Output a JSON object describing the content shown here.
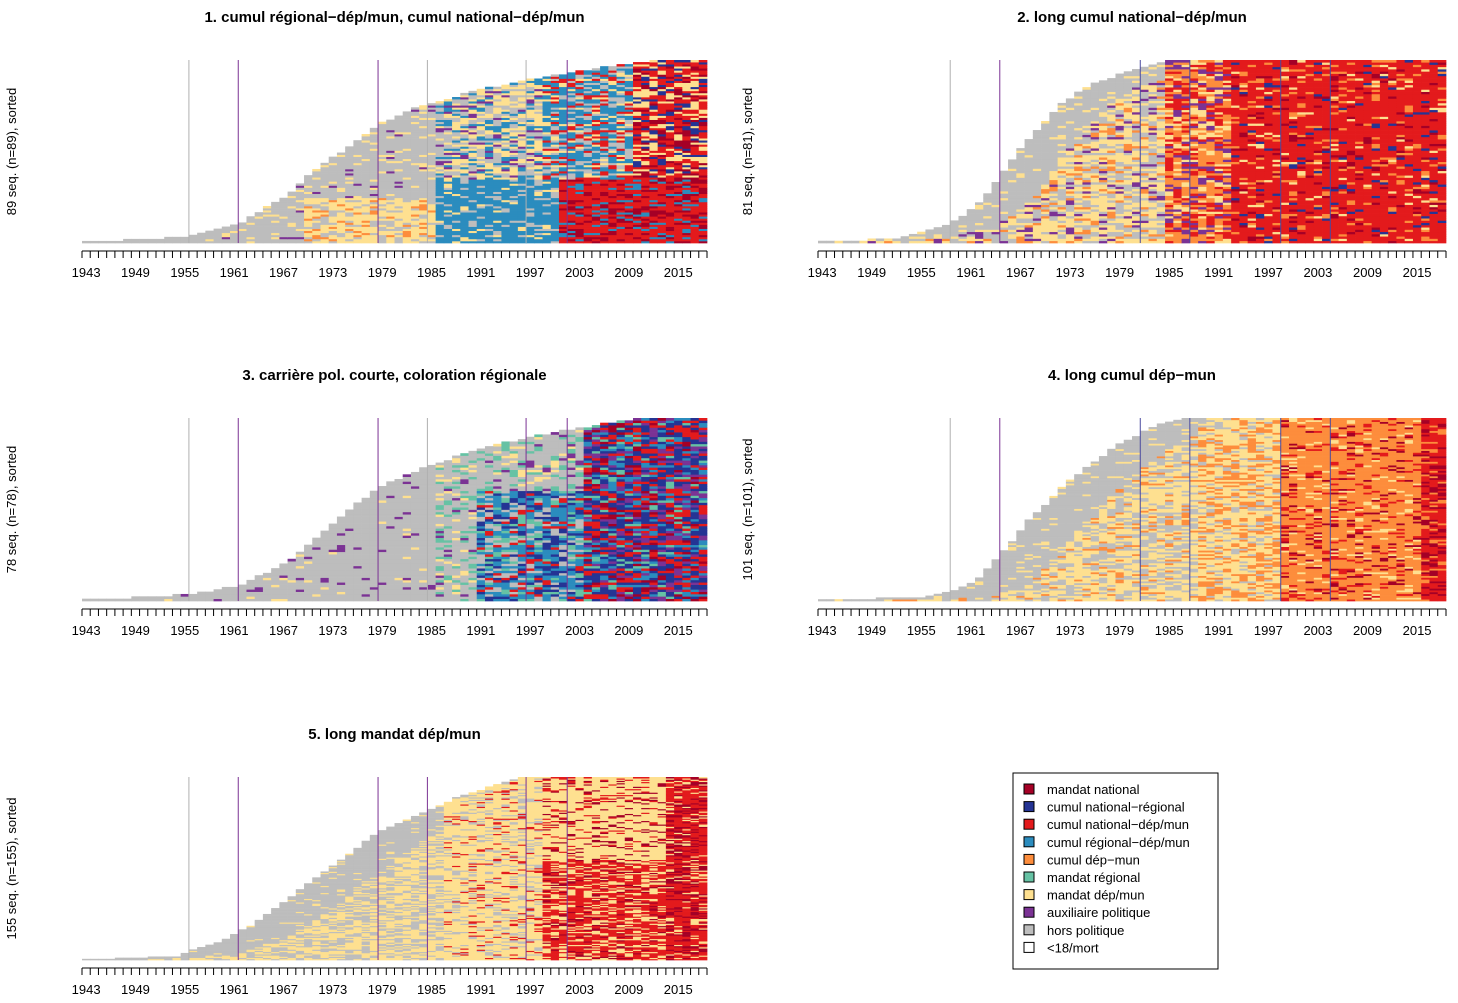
{
  "chart_data": [
    {
      "id": "cluster-1",
      "type": "heatmap",
      "title": "1. cumul régional−dép/mun, cumul national−dép/mun",
      "ylabel": "89 seq. (n=89), sorted",
      "n": 89,
      "xlim": [
        1943,
        2019
      ],
      "xticks": [
        1943,
        1949,
        1955,
        1961,
        1967,
        1973,
        1979,
        1985,
        1991,
        1997,
        2003,
        2009,
        2015
      ],
      "vlines": [
        {
          "year": 1956,
          "color": "#b0b0b0"
        },
        {
          "year": 1962,
          "color": "#7b3294"
        },
        {
          "year": 1979,
          "color": "#7b3294"
        },
        {
          "year": 1985,
          "color": "#b0b0b0"
        },
        {
          "year": 1997,
          "color": "#b0b0b0"
        },
        {
          "year": 2002,
          "color": "#7b3294"
        }
      ],
      "entry_profile": [
        [
          0,
          1943
        ],
        [
          0.03,
          1956
        ],
        [
          0.05,
          1957
        ],
        [
          0.1,
          1962
        ],
        [
          0.18,
          1965
        ],
        [
          0.26,
          1968
        ],
        [
          0.35,
          1970
        ],
        [
          0.45,
          1973
        ],
        [
          0.55,
          1976
        ],
        [
          0.65,
          1979
        ],
        [
          0.75,
          1984
        ],
        [
          0.85,
          1992
        ],
        [
          0.92,
          2000
        ],
        [
          0.97,
          2007
        ],
        [
          1.0,
          2012
        ]
      ],
      "bands": [
        [
          0.0,
          "#fee090",
          0.45,
          "#2b8cbe",
          0.6,
          "#e31a1c",
          0.85,
          "#a50026"
        ],
        [
          0.25,
          "#fee090",
          0.5,
          "#fee090",
          0.6,
          "#2b8cbe",
          0.78,
          "#e31a1c"
        ],
        [
          0.5,
          "#fee090",
          0.6,
          "#fee090",
          0.75,
          "#2b8cbe",
          0.85,
          "#e31a1c"
        ],
        [
          0.75,
          "#fee090",
          0.8,
          "#fee090",
          0.9,
          "#fee090",
          0.95,
          "#e31a1c"
        ],
        [
          1.0,
          "#fee090",
          0.95,
          "#fee090",
          1.0,
          "#fee090",
          1.0,
          "#e31a1c"
        ]
      ]
    },
    {
      "id": "cluster-2",
      "type": "heatmap",
      "title": "2. long cumul national−dép/mun",
      "ylabel": "81 seq. (n=81), sorted",
      "n": 81,
      "xlim": [
        1943,
        2019
      ],
      "xticks": [
        1943,
        1949,
        1955,
        1961,
        1967,
        1973,
        1979,
        1985,
        1991,
        1997,
        2003,
        2009,
        2015
      ],
      "vlines": [
        {
          "year": 1959,
          "color": "#b0b0b0"
        },
        {
          "year": 1965,
          "color": "#7b3294"
        },
        {
          "year": 1982,
          "color": "#4a4aa0"
        },
        {
          "year": 1988,
          "color": "#4a4aa0"
        },
        {
          "year": 1999,
          "color": "#4a4aa0"
        },
        {
          "year": 2005,
          "color": "#4a4aa0"
        }
      ],
      "entry_profile": [
        [
          0,
          1943
        ],
        [
          0.02,
          1952
        ],
        [
          0.05,
          1955
        ],
        [
          0.1,
          1959
        ],
        [
          0.2,
          1962
        ],
        [
          0.3,
          1964
        ],
        [
          0.42,
          1966
        ],
        [
          0.55,
          1968
        ],
        [
          0.65,
          1970
        ],
        [
          0.75,
          1972
        ],
        [
          0.85,
          1975
        ],
        [
          0.92,
          1979
        ],
        [
          0.97,
          1982
        ],
        [
          1.0,
          1985
        ]
      ],
      "bands": [
        [
          0.0,
          "#fee090",
          0.2,
          "#fd8d3c",
          0.45,
          "#e31a1c",
          1.0,
          "#e31a1c"
        ],
        [
          0.25,
          "#fee090",
          0.25,
          "#fd8d3c",
          0.45,
          "#e31a1c",
          1.0,
          "#e31a1c"
        ],
        [
          0.5,
          "#fee090",
          0.3,
          "#fd8d3c",
          0.5,
          "#e31a1c",
          1.0,
          "#e31a1c"
        ],
        [
          0.75,
          "#fee090",
          0.35,
          "#fd8d3c",
          0.55,
          "#e31a1c",
          1.0,
          "#e31a1c"
        ],
        [
          1.0,
          "#fee090",
          0.4,
          "#fd8d3c",
          0.6,
          "#e31a1c",
          1.0,
          "#e31a1c"
        ]
      ]
    },
    {
      "id": "cluster-3",
      "type": "heatmap",
      "title": "3. carrière pol. courte, coloration régionale",
      "ylabel": "78 seq. (n=78), sorted",
      "n": 78,
      "xlim": [
        1943,
        2019
      ],
      "xticks": [
        1943,
        1949,
        1955,
        1961,
        1967,
        1973,
        1979,
        1985,
        1991,
        1997,
        2003,
        2009,
        2015
      ],
      "vlines": [
        {
          "year": 1956,
          "color": "#b0b0b0"
        },
        {
          "year": 1962,
          "color": "#7b3294"
        },
        {
          "year": 1979,
          "color": "#7b3294"
        },
        {
          "year": 1985,
          "color": "#b0b0b0"
        },
        {
          "year": 1997,
          "color": "#7b3294"
        },
        {
          "year": 2002,
          "color": "#7b3294"
        }
      ],
      "entry_profile": [
        [
          0,
          1943
        ],
        [
          0.03,
          1956
        ],
        [
          0.08,
          1962
        ],
        [
          0.18,
          1967
        ],
        [
          0.28,
          1970
        ],
        [
          0.4,
          1973
        ],
        [
          0.52,
          1976
        ],
        [
          0.62,
          1979
        ],
        [
          0.72,
          1984
        ],
        [
          0.82,
          1990
        ],
        [
          0.9,
          1997
        ],
        [
          0.95,
          2003
        ],
        [
          1.0,
          2010
        ]
      ],
      "bands": [
        [
          0.0,
          "#fee090",
          0.7,
          "#2b8cbe",
          0.9,
          "#e31a1c",
          0.95,
          "#a50026"
        ],
        [
          0.25,
          "#fee090",
          0.75,
          "#253494",
          0.9,
          "#e31a1c",
          0.96,
          "#a50026"
        ],
        [
          0.5,
          "#fee090",
          0.8,
          "#66c2a4",
          0.92,
          "#253494",
          0.97,
          "#a50026"
        ],
        [
          0.75,
          "#fee090",
          0.85,
          "#66c2a4",
          0.95,
          "#253494",
          0.98,
          "#a50026"
        ],
        [
          1.0,
          "#fee090",
          0.9,
          "#66c2a4",
          1.0,
          "#253494",
          1.0,
          "#a50026"
        ]
      ]
    },
    {
      "id": "cluster-4",
      "type": "heatmap",
      "title": "4. long cumul dép−mun",
      "ylabel": "101 seq. (n=101), sorted",
      "n": 101,
      "xlim": [
        1943,
        2019
      ],
      "xticks": [
        1943,
        1949,
        1955,
        1961,
        1967,
        1973,
        1979,
        1985,
        1991,
        1997,
        2003,
        2009,
        2015
      ],
      "vlines": [
        {
          "year": 1959,
          "color": "#b0b0b0"
        },
        {
          "year": 1965,
          "color": "#7b3294"
        },
        {
          "year": 1982,
          "color": "#4a4aa0"
        },
        {
          "year": 1988,
          "color": "#4a4aa0"
        },
        {
          "year": 1999,
          "color": "#4a4aa0"
        },
        {
          "year": 2005,
          "color": "#4a4aa0"
        }
      ],
      "entry_profile": [
        [
          0,
          1943
        ],
        [
          0.02,
          1956
        ],
        [
          0.05,
          1959
        ],
        [
          0.1,
          1962
        ],
        [
          0.2,
          1964
        ],
        [
          0.3,
          1966
        ],
        [
          0.42,
          1968
        ],
        [
          0.55,
          1971
        ],
        [
          0.65,
          1973
        ],
        [
          0.75,
          1976
        ],
        [
          0.85,
          1979
        ],
        [
          0.92,
          1982
        ],
        [
          0.97,
          1984
        ],
        [
          1.0,
          1987
        ]
      ],
      "bands": [
        [
          0.0,
          "#fee090",
          0.6,
          "#fd8d3c",
          0.93,
          "#e31a1c",
          1.0,
          "#e31a1c"
        ],
        [
          0.25,
          "#fee090",
          0.62,
          "#fd8d3c",
          0.93,
          "#e31a1c",
          1.0,
          "#e31a1c"
        ],
        [
          0.5,
          "#fee090",
          0.65,
          "#fd8d3c",
          0.95,
          "#e31a1c",
          1.0,
          "#e31a1c"
        ],
        [
          0.75,
          "#fee090",
          0.7,
          "#fd8d3c",
          0.97,
          "#e31a1c",
          1.0,
          "#e31a1c"
        ],
        [
          1.0,
          "#fee090",
          0.75,
          "#fd8d3c",
          0.98,
          "#e31a1c",
          1.0,
          "#e31a1c"
        ]
      ]
    },
    {
      "id": "cluster-5",
      "type": "heatmap",
      "title": "5. long mandat dép/mun",
      "ylabel": "155 seq. (n=155), sorted",
      "n": 155,
      "xlim": [
        1943,
        2019
      ],
      "xticks": [
        1943,
        1949,
        1955,
        1961,
        1967,
        1973,
        1979,
        1985,
        1991,
        1997,
        2003,
        2009,
        2015
      ],
      "vlines": [
        {
          "year": 1956,
          "color": "#b0b0b0"
        },
        {
          "year": 1962,
          "color": "#7b3294"
        },
        {
          "year": 1979,
          "color": "#7b3294"
        },
        {
          "year": 1985,
          "color": "#7b3294"
        },
        {
          "year": 1997,
          "color": "#7b3294"
        },
        {
          "year": 2002,
          "color": "#7b3294"
        }
      ],
      "entry_profile": [
        [
          0,
          1943
        ],
        [
          0.02,
          1955
        ],
        [
          0.05,
          1956
        ],
        [
          0.1,
          1960
        ],
        [
          0.2,
          1964
        ],
        [
          0.3,
          1967
        ],
        [
          0.4,
          1970
        ],
        [
          0.5,
          1973
        ],
        [
          0.6,
          1976
        ],
        [
          0.7,
          1979
        ],
        [
          0.8,
          1984
        ],
        [
          0.9,
          1989
        ],
        [
          0.97,
          1994
        ],
        [
          1.0,
          1996
        ]
      ],
      "bands": [
        [
          0.0,
          "#fee090",
          0.6,
          "#e31a1c",
          0.97,
          "#a50026",
          1.0,
          "#a50026"
        ],
        [
          0.25,
          "#fee090",
          0.7,
          "#e31a1c",
          0.97,
          "#a50026",
          1.0,
          "#a50026"
        ],
        [
          0.5,
          "#fee090",
          0.8,
          "#e31a1c",
          0.98,
          "#a50026",
          1.0,
          "#a50026"
        ],
        [
          0.75,
          "#fee090",
          0.95,
          "#e31a1c",
          0.99,
          "#a50026",
          1.0,
          "#a50026"
        ],
        [
          1.0,
          "#fee090",
          0.98,
          "#e31a1c",
          1.0,
          "#a50026",
          1.0,
          "#a50026"
        ]
      ]
    }
  ],
  "legend": {
    "items": [
      {
        "label": "mandat national",
        "color": "#a50026"
      },
      {
        "label": "cumul national−régional",
        "color": "#253494"
      },
      {
        "label": "cumul national−dép/mun",
        "color": "#e31a1c"
      },
      {
        "label": "cumul régional−dép/mun",
        "color": "#2b8cbe"
      },
      {
        "label": "cumul dép−mun",
        "color": "#fd8d3c"
      },
      {
        "label": "mandat régional",
        "color": "#66c2a4"
      },
      {
        "label": "mandat dép/mun",
        "color": "#fee090"
      },
      {
        "label": "auxiliaire politique",
        "color": "#7b3294"
      },
      {
        "label": "hors politique",
        "color": "#bdbdbd"
      },
      {
        "label": "<18/mort",
        "color": "#ffffff"
      }
    ]
  }
}
